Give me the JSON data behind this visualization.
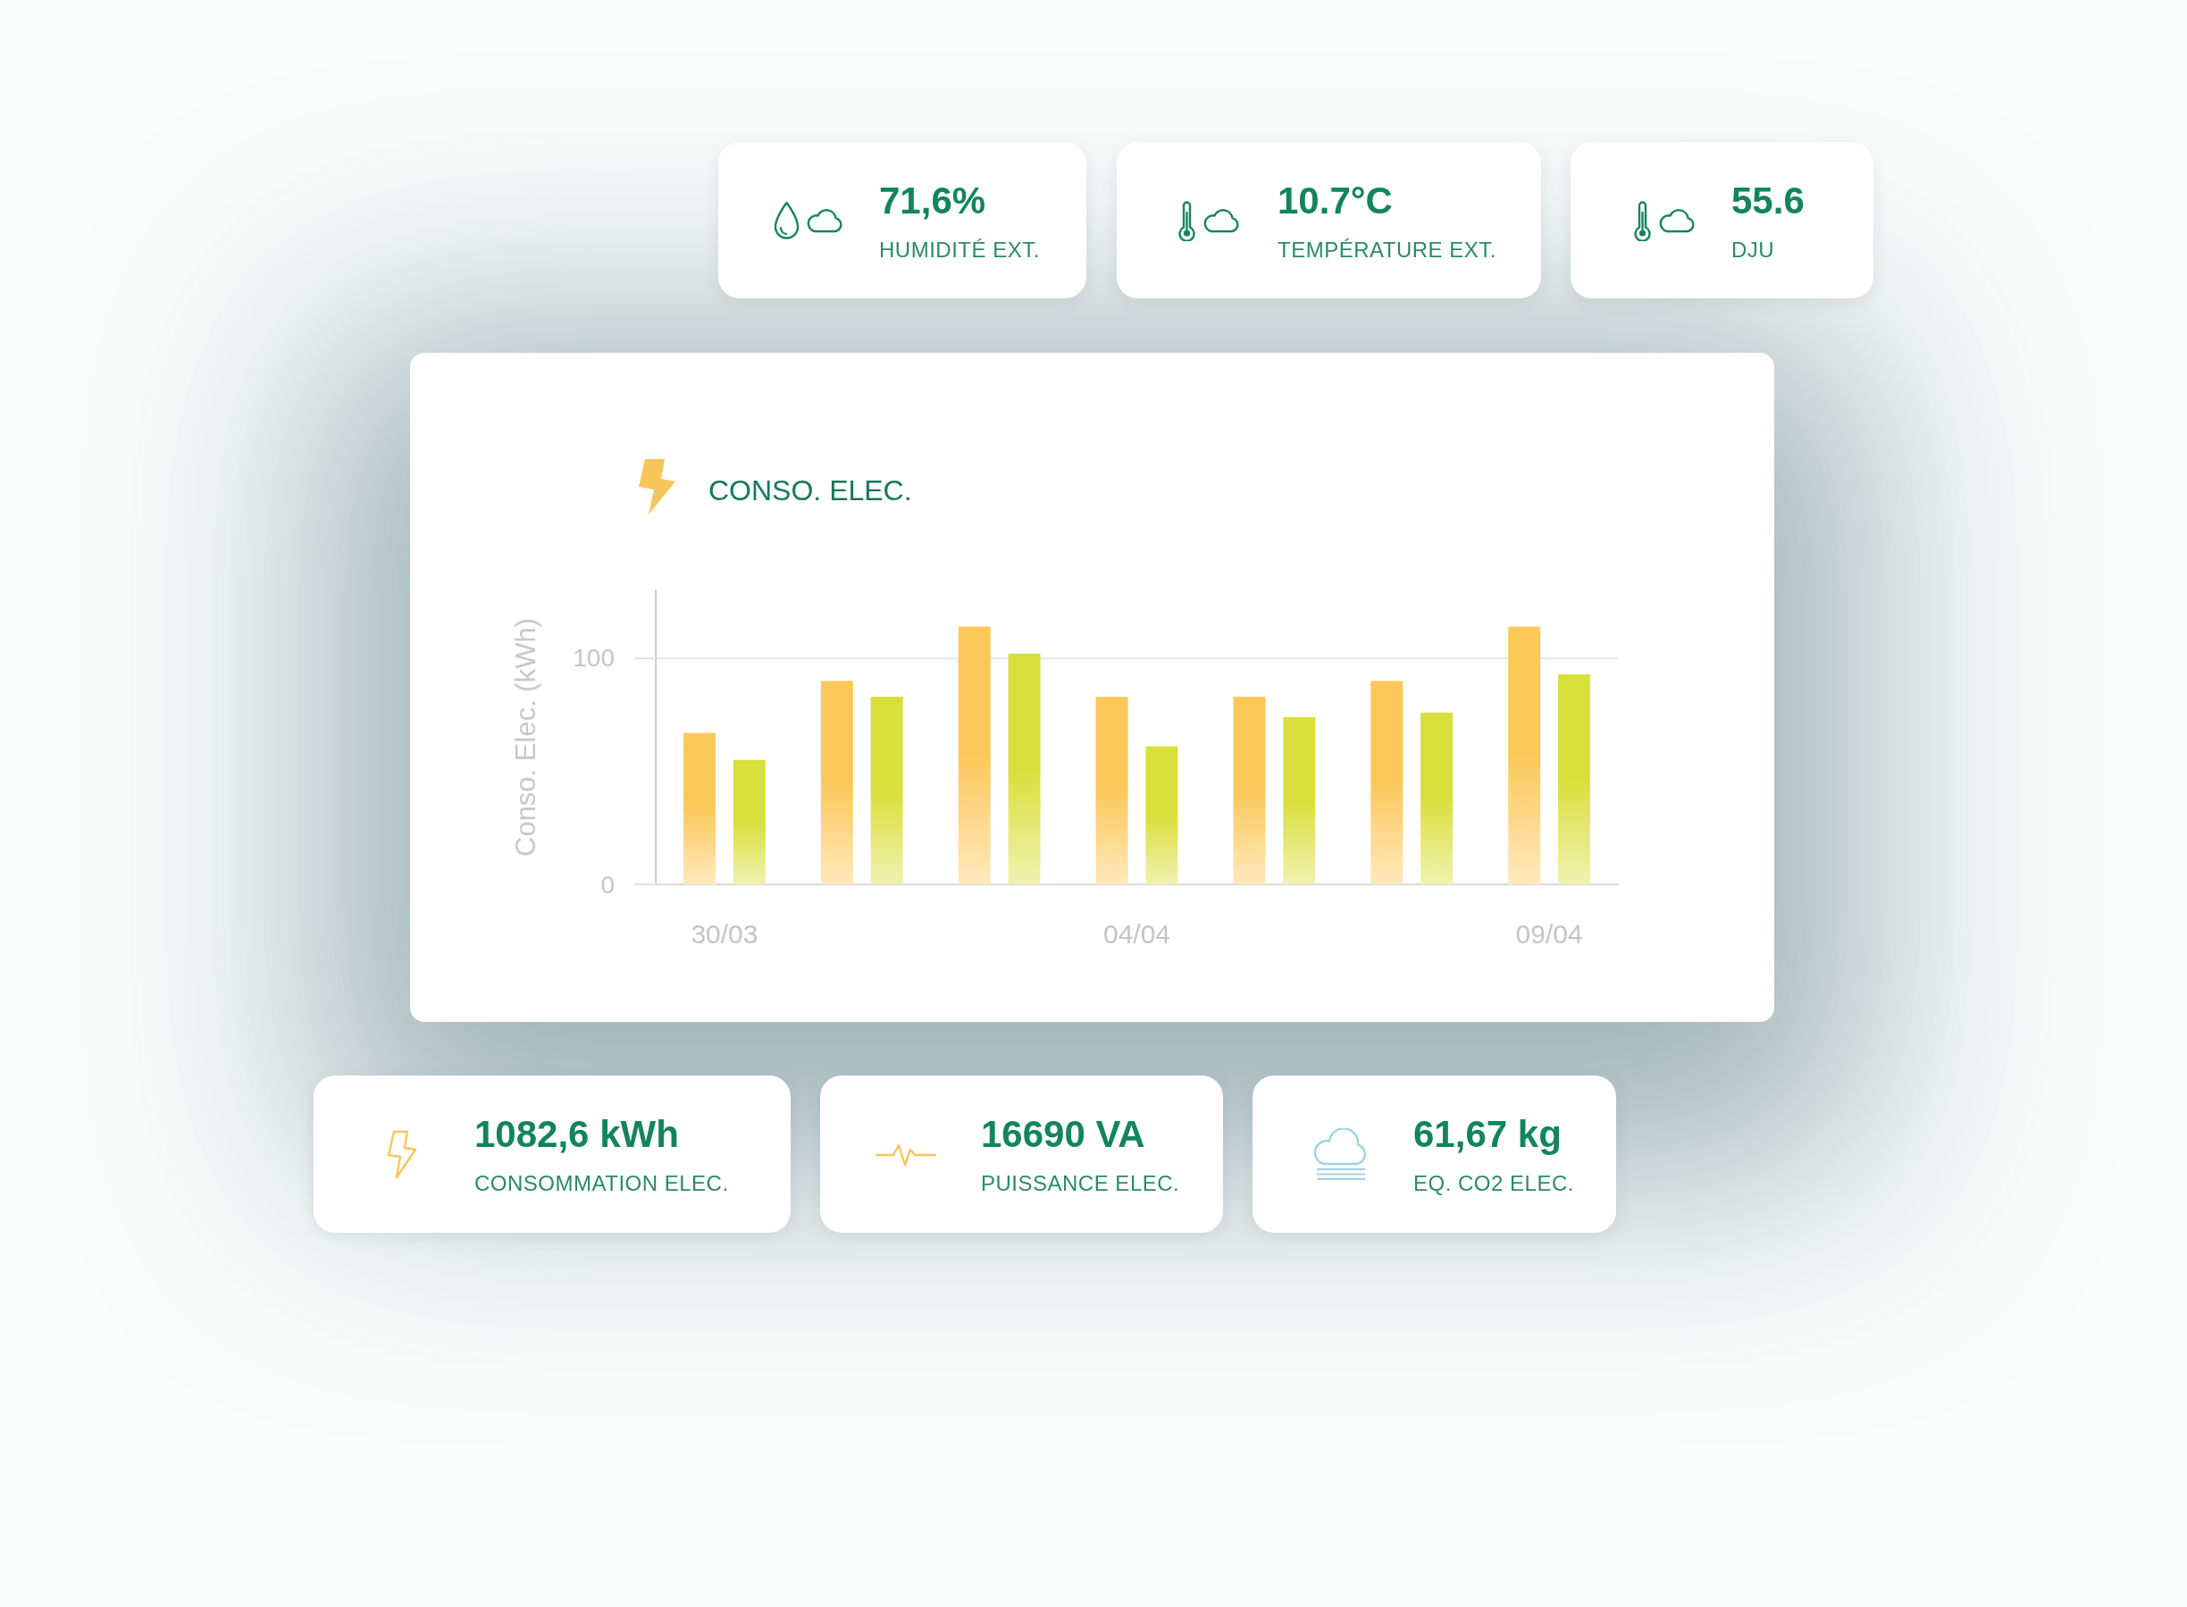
{
  "chart_data": [
    {
      "type": "other",
      "annotations": [
        "71,6%",
        "HUMIDITÉ EXT."
      ]
    },
    {
      "type": "other",
      "annotations": [
        "10.7°C",
        "TEMPÉRATURE EXT."
      ]
    },
    {
      "type": "other",
      "annotations": [
        "55.6",
        "DJU"
      ]
    },
    {
      "type": "bar",
      "title": "CONSO. ELEC.",
      "ylabel": "Conso. Elec. (kWh)",
      "categories": [
        "30/03",
        null,
        null,
        "04/04",
        null,
        null,
        "09/04"
      ],
      "series": [
        {
          "color": "#fcc85a",
          "values": [
            67,
            90,
            114,
            83,
            83,
            90,
            114
          ]
        },
        {
          "color": "#d9df3b",
          "values": [
            55,
            83,
            102,
            61,
            74,
            76,
            93
          ]
        }
      ],
      "ylim": [
        0,
        130
      ],
      "yticks": [
        0,
        100
      ],
      "grid": "y"
    },
    {
      "type": "other",
      "annotations": [
        "1082,6 kWh",
        "CONSOMMATION ELEC."
      ]
    },
    {
      "type": "other",
      "annotations": [
        "16690 VA",
        "PUISSANCE ELEC."
      ]
    },
    {
      "type": "other",
      "annotations": [
        "61,67 kg",
        "EQ. CO2 ELEC."
      ]
    }
  ]
}
